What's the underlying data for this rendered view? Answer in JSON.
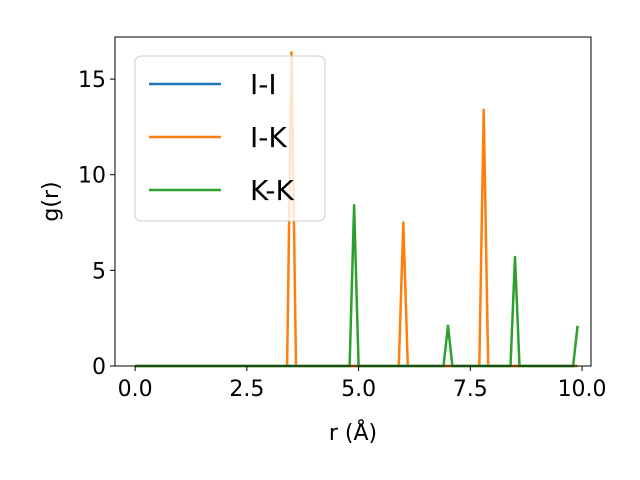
{
  "chart_data": {
    "type": "line",
    "title": "",
    "xlabel": "r (Å)",
    "ylabel": "g(r)",
    "xlim": [
      -0.45,
      10.2
    ],
    "ylim": [
      0,
      17.2
    ],
    "xticks": [
      0.0,
      2.5,
      5.0,
      7.5,
      10.0
    ],
    "xtick_labels": [
      "0.0",
      "2.5",
      "5.0",
      "7.5",
      "10.0"
    ],
    "yticks": [
      0,
      5,
      10,
      15
    ],
    "ytick_labels": [
      "0",
      "5",
      "10",
      "15"
    ],
    "grid": false,
    "legend_position": "upper-left",
    "series": [
      {
        "name": "I-I",
        "color": "#1f77b4",
        "x": [
          0.0,
          9.9
        ],
        "y": [
          0,
          0
        ]
      },
      {
        "name": "I-K",
        "color": "#ff7f0e",
        "x": [
          0.0,
          3.4,
          3.5,
          3.6,
          5.9,
          6.0,
          6.1,
          7.7,
          7.8,
          7.9,
          9.9
        ],
        "y": [
          0,
          0,
          16.4,
          0,
          0,
          7.5,
          0,
          0,
          13.4,
          0,
          0
        ]
      },
      {
        "name": "K-K",
        "color": "#2ca02c",
        "x": [
          0.0,
          4.8,
          4.9,
          5.0,
          6.9,
          7.0,
          7.1,
          8.4,
          8.5,
          8.6,
          9.8,
          9.9
        ],
        "y": [
          0,
          0,
          8.4,
          0,
          0,
          2.1,
          0,
          0,
          5.7,
          0,
          0,
          2.1
        ]
      }
    ]
  }
}
